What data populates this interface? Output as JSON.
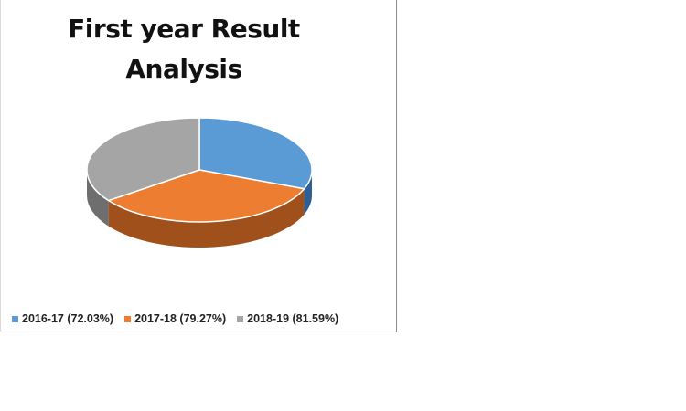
{
  "chart_data": {
    "type": "pie",
    "title_lines": [
      "First year Result",
      "Analysis"
    ],
    "legend_position": "bottom",
    "style": "3d",
    "series": [
      {
        "name": "2016-17 (72.03%)",
        "value": 72.03,
        "color": "#5b9bd5",
        "side_color": "#2e5f95"
      },
      {
        "name": "2017-18 (79.27%)",
        "value": 79.27,
        "color": "#ed7d31",
        "side_color": "#a0501a"
      },
      {
        "name": "2018-19 (81.59%)",
        "value": 81.59,
        "color": "#a5a5a5",
        "side_color": "#6e6e6e"
      }
    ]
  }
}
